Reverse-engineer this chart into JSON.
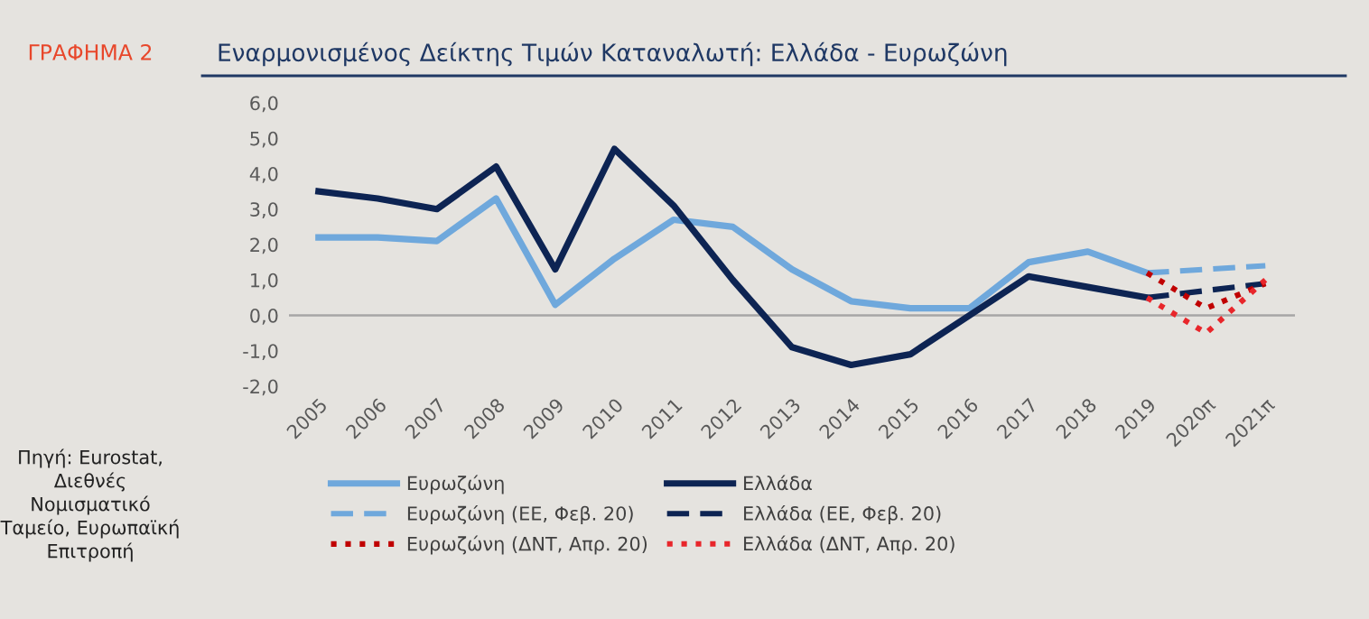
{
  "chart_data": {
    "type": "line",
    "title": "Εναρμονισμένος Δείκτης Τιμών Καταναλωτή: Ελλάδα - Ευρωζώνη",
    "annotations": [
      "ΓΡΑΦΗΜΑ 2",
      "Πηγή: Eurostat, Διεθνές Νομισματικό Ταμείο, Ευρωπαϊκή Επιτροπή"
    ],
    "categories": [
      "2005",
      "2006",
      "2007",
      "2008",
      "2009",
      "2010",
      "2011",
      "2012",
      "2013",
      "2014",
      "2015",
      "2016",
      "2017",
      "2018",
      "2019",
      "2020π",
      "2021π"
    ],
    "series": [
      {
        "name": "Ευρωζώνη",
        "color": "#6fa8dc",
        "line_style": "solid",
        "values": [
          2.2,
          2.2,
          2.1,
          3.3,
          0.3,
          1.6,
          2.7,
          2.5,
          1.3,
          0.4,
          0.2,
          0.2,
          1.5,
          1.8,
          1.2,
          null,
          null
        ]
      },
      {
        "name": "Ελλάδα",
        "color": "#0d2453",
        "line_style": "solid",
        "values": [
          3.5,
          3.3,
          3.0,
          4.2,
          1.3,
          4.7,
          3.1,
          1.0,
          -0.9,
          -1.4,
          -1.1,
          0.0,
          1.1,
          0.8,
          0.5,
          null,
          null
        ]
      },
      {
        "name": "Ευρωζώνη (ΕΕ, Φεβ. 20)",
        "color": "#6fa8dc",
        "line_style": "dashed",
        "values": [
          null,
          null,
          null,
          null,
          null,
          null,
          null,
          null,
          null,
          null,
          null,
          null,
          null,
          null,
          1.2,
          1.3,
          1.4
        ]
      },
      {
        "name": "Ελλάδα (ΕΕ, Φεβ. 20)",
        "color": "#0d2453",
        "line_style": "dashed",
        "values": [
          null,
          null,
          null,
          null,
          null,
          null,
          null,
          null,
          null,
          null,
          null,
          null,
          null,
          null,
          0.5,
          0.7,
          0.9
        ]
      },
      {
        "name": "Ευρωζώνη (ΔΝΤ, Απρ. 20)",
        "color": "#c00000",
        "line_style": "dotted",
        "values": [
          null,
          null,
          null,
          null,
          null,
          null,
          null,
          null,
          null,
          null,
          null,
          null,
          null,
          null,
          1.2,
          0.2,
          0.9
        ]
      },
      {
        "name": "Ελλάδα (ΔΝΤ, Απρ. 20)",
        "color": "#e8262b",
        "line_style": "dotted",
        "values": [
          null,
          null,
          null,
          null,
          null,
          null,
          null,
          null,
          null,
          null,
          null,
          null,
          null,
          null,
          0.5,
          -0.5,
          1.0
        ]
      }
    ],
    "ylim": [
      -2,
      6
    ],
    "yticks": [
      {
        "value": -2,
        "label": "-2,0"
      },
      {
        "value": -1,
        "label": "-1,0"
      },
      {
        "value": 0,
        "label": "0,0"
      },
      {
        "value": 1,
        "label": "1,0"
      },
      {
        "value": 2,
        "label": "2,0"
      },
      {
        "value": 3,
        "label": "3,0"
      },
      {
        "value": 4,
        "label": "4,0"
      },
      {
        "value": 5,
        "label": "5,0"
      },
      {
        "value": 6,
        "label": "6,0"
      }
    ],
    "ref_lines": [
      {
        "axis": "y",
        "value": 0,
        "color": "#a6a6a6"
      }
    ],
    "grid": false,
    "marker": "none",
    "legend": "bottom"
  }
}
